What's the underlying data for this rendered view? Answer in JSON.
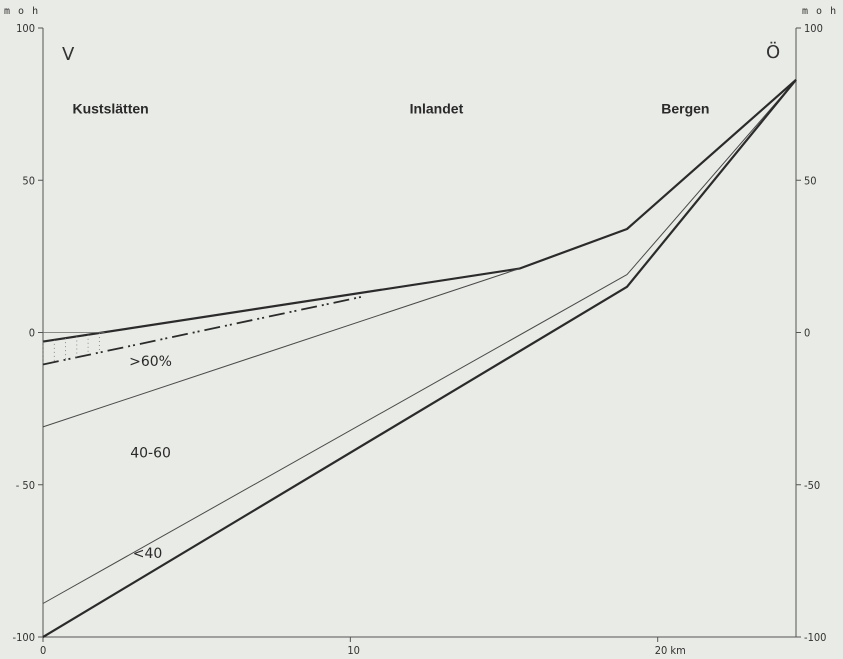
{
  "chart_data": {
    "type": "line",
    "title": "",
    "y_unit_left": "m o h",
    "y_unit_right": "m o h",
    "xlim": [
      0,
      24.5
    ],
    "ylim": [
      -100,
      100
    ],
    "x_ticks": [
      {
        "value": 0,
        "label": "0"
      },
      {
        "value": 10,
        "label": "10"
      },
      {
        "value": 20,
        "label": "20  km"
      }
    ],
    "y_ticks": [
      {
        "value": 100,
        "label": "100"
      },
      {
        "value": 50,
        "label": "50"
      },
      {
        "value": 0,
        "label": "0"
      },
      {
        "value": -50,
        "label": "- 50"
      },
      {
        "value": -100,
        "label": "-100"
      }
    ],
    "y_ticks_right": [
      {
        "value": 100,
        "label": "100"
      },
      {
        "value": 50,
        "label": "50"
      },
      {
        "value": 0,
        "label": "0"
      },
      {
        "value": -50,
        "label": "-50"
      },
      {
        "value": -100,
        "label": "-100"
      }
    ],
    "direction_labels": {
      "west": "V",
      "east": "Ö"
    },
    "region_labels": [
      {
        "text": "Kustslätten",
        "x": 2.2,
        "y": 72
      },
      {
        "text": "Inlandet",
        "x": 12.8,
        "y": 72
      },
      {
        "text": "Bergen",
        "x": 20.9,
        "y": 72
      }
    ],
    "zone_labels": [
      {
        "text": ">60%",
        "x": 3.5,
        "y": -11
      },
      {
        "text": "40-60",
        "x": 3.5,
        "y": -41
      },
      {
        "text": "<40",
        "x": 3.4,
        "y": -74
      }
    ],
    "series": [
      {
        "style": "thick",
        "x": [
          0,
          15.5,
          19,
          24.5
        ],
        "y": [
          -3,
          21,
          34,
          83
        ]
      },
      {
        "style": "thin",
        "x": [
          0,
          15.5
        ],
        "y": [
          -31,
          21
        ]
      },
      {
        "style": "thin",
        "x": [
          0,
          19,
          24.5
        ],
        "y": [
          -89,
          19,
          83
        ]
      },
      {
        "style": "thick",
        "x": [
          0,
          19,
          24.5
        ],
        "y": [
          -100,
          15,
          83
        ]
      },
      {
        "style": "dashed-marked",
        "x": [
          0,
          10.5
        ],
        "y": [
          -10.5,
          12
        ]
      },
      {
        "style": "hairline",
        "x": [
          0,
          2
        ],
        "y": [
          0,
          0
        ]
      }
    ]
  }
}
